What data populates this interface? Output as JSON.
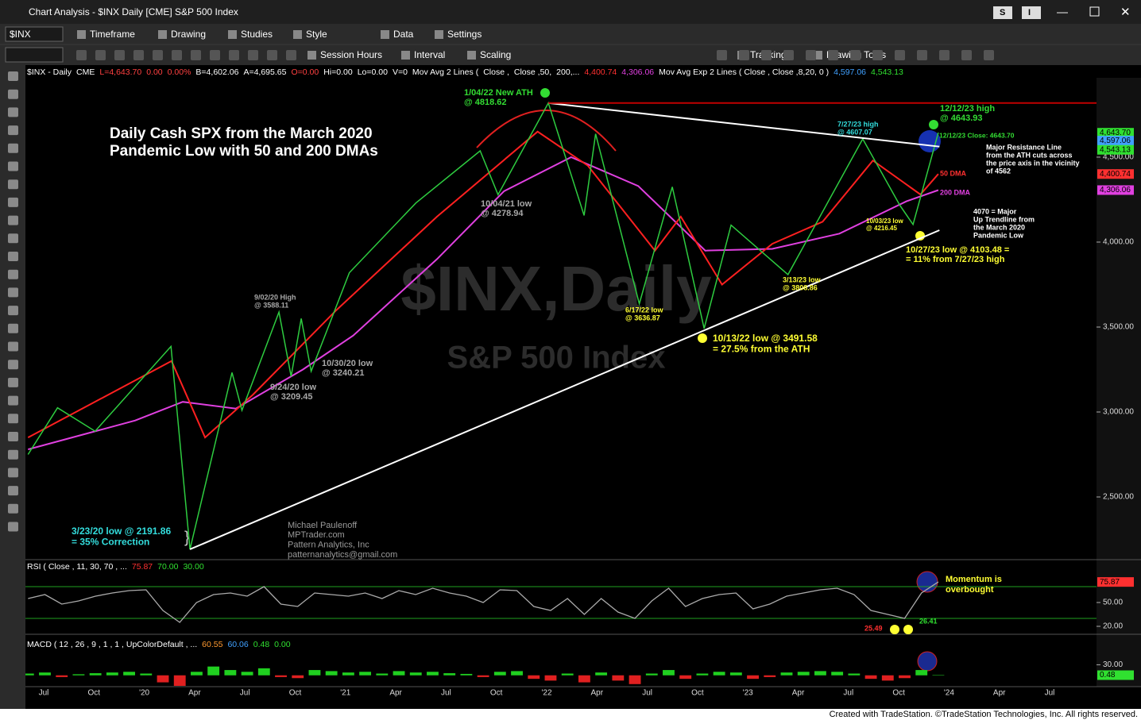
{
  "window": {
    "title": "Chart Analysis - $INX Daily [CME] S&P 500 Index",
    "buttons": [
      "S",
      "I"
    ]
  },
  "toolbar1": {
    "symbol": "$INX",
    "items": [
      "Timeframe",
      "Drawing",
      "Studies",
      "Style",
      "Data",
      "Settings"
    ]
  },
  "toolbar2": {
    "items": [
      "Session Hours",
      "Interval",
      "Scaling",
      "Tracking",
      "Drawing Tools"
    ]
  },
  "status": {
    "segments": [
      {
        "text": "$INX - Daily",
        "color": "#ffffff"
      },
      {
        "text": "CME",
        "color": "#ffffff"
      },
      {
        "text": "L=4,643.70",
        "color": "#ff4040"
      },
      {
        "text": "0.00",
        "color": "#ff4040"
      },
      {
        "text": "0.00%",
        "color": "#ff4040"
      },
      {
        "text": "B=4,602.06",
        "color": "#ffffff"
      },
      {
        "text": "A=4,695.65",
        "color": "#ffffff"
      },
      {
        "text": "O=0.00",
        "color": "#ff4040"
      },
      {
        "text": "Hi=0.00",
        "color": "#ffffff"
      },
      {
        "text": "Lo=0.00",
        "color": "#ffffff"
      },
      {
        "text": "V=0",
        "color": "#ffffff"
      },
      {
        "text": "Mov Avg 2 Lines (",
        "color": "#ffffff"
      },
      {
        "text": "Close ,",
        "color": "#ffffff"
      },
      {
        "text": "Close ,50,",
        "color": "#ffffff"
      },
      {
        "text": "200,...",
        "color": "#ffffff"
      },
      {
        "text": "4,400.74",
        "color": "#ff3030"
      },
      {
        "text": "4,306.06",
        "color": "#e040e0"
      },
      {
        "text": "Mov Avg Exp 2 Lines ( Close , Close ,8,20, 0 )",
        "color": "#ffffff"
      },
      {
        "text": "4,597.06",
        "color": "#40a0ff"
      },
      {
        "text": "4,543.13",
        "color": "#30e030"
      }
    ]
  },
  "chart": {
    "watermark": {
      "symbol": "$INX,Daily",
      "name": "S&P 500 Index"
    },
    "title": [
      "Daily Cash SPX from the March 2020",
      "Pandemic Low with 50 and 200 DMAs"
    ],
    "ylim": [
      2131,
      4967
    ],
    "yticks": [
      {
        "value": 2500,
        "label": "2,500.00"
      },
      {
        "value": 3000,
        "label": "3,000.00"
      },
      {
        "value": 3500,
        "label": "3,500.00"
      },
      {
        "value": 4000,
        "label": "4,000.00"
      },
      {
        "value": 4500,
        "label": "4,500.00"
      }
    ],
    "tags": [
      {
        "value": 4643.7,
        "label": "4,643.70",
        "color": "#30e030"
      },
      {
        "value": 4597.06,
        "label": "4,597.06",
        "color": "#40a0ff"
      },
      {
        "value": 4543.13,
        "label": "4,543.13",
        "color": "#30e030"
      },
      {
        "value": 4400.74,
        "label": "4,400.74",
        "color": "#ff3030"
      },
      {
        "value": 4306.06,
        "label": "4,306.06",
        "color": "#e040e0"
      }
    ],
    "time_axis": [
      "Jul",
      "Oct",
      "'20",
      "Apr",
      "Jul",
      "Oct",
      "'21",
      "Apr",
      "Jul",
      "Oct",
      "'22",
      "Apr",
      "Jul",
      "Oct",
      "'23",
      "Apr",
      "Jul",
      "Oct",
      "'24",
      "Apr",
      "Jul"
    ],
    "price": {
      "color": "#2ecc40",
      "dates": [
        "2019-06-03",
        "2019-07-26",
        "2019-10-03",
        "2020-02-19",
        "2020-03-23",
        "2020-06-08",
        "2020-06-26",
        "2020-09-02",
        "2020-09-24",
        "2020-10-12",
        "2020-10-30",
        "2021-01-08",
        "2021-05-07",
        "2021-09-02",
        "2021-10-04",
        "2022-01-04",
        "2022-03-08",
        "2022-03-29",
        "2022-06-17",
        "2022-08-16",
        "2022-10-13",
        "2022-12-01",
        "2023-03-13",
        "2023-07-27",
        "2023-10-03",
        "2023-10-27",
        "2023-12-12"
      ],
      "values": [
        2750,
        3025,
        2887,
        3386,
        2191.86,
        3232,
        3010,
        3588.11,
        3209.45,
        3550,
        3240.21,
        3820,
        4230,
        4537,
        4278.94,
        4818.62,
        4157,
        4637,
        3636.87,
        4325,
        3491.58,
        4100,
        3808.86,
        4607.07,
        4216.45,
        4103.48,
        4643.93
      ]
    },
    "ma50": {
      "color": "#ff2020",
      "dates": [
        "2019-06-03",
        "2020-02-20",
        "2020-04-20",
        "2020-07-15",
        "2020-12-15",
        "2021-06-15",
        "2021-12-15",
        "2022-03-15",
        "2022-07-15",
        "2022-09-01",
        "2022-11-15",
        "2023-02-15",
        "2023-05-15",
        "2023-08-15",
        "2023-11-10",
        "2023-12-12"
      ],
      "values": [
        2850,
        3300,
        2850,
        3100,
        3600,
        4150,
        4650,
        4450,
        3950,
        4150,
        3750,
        3990,
        4120,
        4480,
        4280,
        4400.74
      ]
    },
    "ma200": {
      "color": "#e040e0",
      "dates": [
        "2019-06-03",
        "2019-12-15",
        "2020-03-10",
        "2020-06-15",
        "2020-10-15",
        "2021-01-15",
        "2021-06-15",
        "2021-10-15",
        "2022-02-15",
        "2022-06-15",
        "2022-10-15",
        "2023-02-15",
        "2023-06-15",
        "2023-10-15",
        "2023-12-12"
      ],
      "values": [
        2780,
        2950,
        3060,
        3020,
        3250,
        3450,
        3900,
        4300,
        4500,
        4330,
        3950,
        3960,
        4050,
        4240,
        4306.06
      ]
    },
    "trendlines": [
      {
        "color": "#ffffff",
        "from": {
          "date": "2022-01-04",
          "value": 4818.62
        },
        "to": {
          "date": "2023-12-14",
          "value": 4562
        }
      },
      {
        "color": "#ffffff",
        "from": {
          "date": "2020-03-23",
          "value": 2191.86
        },
        "to": {
          "date": "2023-12-14",
          "value": 4070
        }
      },
      {
        "color": "#c00000",
        "from": {
          "date": "2022-01-04",
          "value": 4818.62
        },
        "to": {
          "date": "2024-09-30",
          "value": 4818.62
        }
      }
    ],
    "annotations": [
      {
        "lines": [
          "1/04/22 New ATH",
          "@ 4818.62"
        ],
        "color": "#33dd33"
      },
      {
        "lines": [
          "10/04/21 low",
          "@ 4278.94"
        ],
        "color": "#a8a8a8"
      },
      {
        "lines": [
          "9/02/20 High",
          "@ 3588.11"
        ],
        "color": "#a8a8a8"
      },
      {
        "lines": [
          "10/30/20 low",
          "@ 3240.21"
        ],
        "color": "#a8a8a8"
      },
      {
        "lines": [
          "9/24/20 low",
          "@ 3209.45"
        ],
        "color": "#a8a8a8"
      },
      {
        "lines": [
          "6/17/22 low",
          "@ 3636.87"
        ],
        "color": "#ffff33"
      },
      {
        "lines": [
          "10/13/22 low @ 3491.58",
          "= 27.5% from the ATH"
        ],
        "color": "#ffff33"
      },
      {
        "lines": [
          "3/13/23 low",
          "@ 3808.86"
        ],
        "color": "#ffff33"
      },
      {
        "lines": [
          "7/27/23 high",
          "@ 4607.07"
        ],
        "color": "#33dddd"
      },
      {
        "lines": [
          "10/03/23 low",
          "@ 4216.45"
        ],
        "color": "#ffff33"
      },
      {
        "lines": [
          "10/27/23 low @ 4103.48 =",
          "= 11% from 7/27/23 high"
        ],
        "color": "#ffff33"
      },
      {
        "lines": [
          "12/12/23 high",
          "@ 4643.93"
        ],
        "color": "#33dd33"
      },
      {
        "lines": [
          "12/12/23 Close: 4643.70"
        ],
        "color": "#33dd33"
      },
      {
        "lines": [
          "Major Resistance Line",
          "from the ATH cuts across",
          "the price axis in the vicinity",
          "of 4562"
        ],
        "color": "#ffffff"
      },
      {
        "lines": [
          "50 DMA"
        ],
        "color": "#ff3030"
      },
      {
        "lines": [
          "200 DMA"
        ],
        "color": "#e040e0"
      },
      {
        "lines": [
          "4070 = Major",
          "Up Trendline from",
          "the March 2020",
          "Pandemic Low"
        ],
        "color": "#ffffff"
      },
      {
        "lines": [
          "3/23/20 low @ 2191.86",
          "= 35% Correction"
        ],
        "color": "#33dddd"
      },
      {
        "lines": [
          "Michael Paulenoff",
          "MPTrader.com",
          "Pattern Analytics, Inc",
          "patternanalytics@gmail.com"
        ],
        "color": "#9a9a9a"
      }
    ]
  },
  "rsi": {
    "label": [
      {
        "text": "RSI ( Close , 11, 30, 70 , ...",
        "color": "#ffffff"
      },
      {
        "text": "75.87",
        "color": "#ff3030"
      },
      {
        "text": "70.00",
        "color": "#30e030"
      },
      {
        "text": "30.00",
        "color": "#30e030"
      }
    ],
    "ylim": [
      14,
      93
    ],
    "levels": [
      70,
      30
    ],
    "yticks": [
      {
        "value": 50,
        "label": "50.00"
      },
      {
        "value": 20,
        "label": "20.00"
      }
    ],
    "tag": {
      "value": 75.87,
      "label": "75.87"
    },
    "values": [
      55,
      60,
      48,
      52,
      58,
      62,
      65,
      66,
      40,
      25,
      50,
      60,
      62,
      58,
      70,
      48,
      45,
      62,
      60,
      58,
      62,
      55,
      65,
      60,
      68,
      62,
      58,
      50,
      66,
      65,
      45,
      40,
      55,
      35,
      55,
      38,
      30,
      52,
      68,
      45,
      55,
      60,
      62,
      42,
      48,
      58,
      62,
      66,
      68,
      60,
      40,
      35,
      30,
      62,
      75.87
    ],
    "notes": [
      {
        "lines": [
          "Momentum is",
          "overbought"
        ],
        "color": "#ffff33"
      },
      {
        "lines": [
          "25.49"
        ],
        "color": "#ff3030"
      },
      {
        "lines": [
          "26.41"
        ],
        "color": "#30e030"
      }
    ]
  },
  "macd": {
    "label": [
      {
        "text": "MACD ( 12 , 26 , 9 , 1 , 1 , UpColorDefault , ...",
        "color": "#ffffff"
      },
      {
        "text": "60.55",
        "color": "#ff9a30"
      },
      {
        "text": "60.06",
        "color": "#40a0ff"
      },
      {
        "text": "0.48",
        "color": "#30e030"
      },
      {
        "text": "0.00",
        "color": "#30e030"
      }
    ],
    "ylim": [
      -30,
      110
    ],
    "yticks": [
      {
        "value": 30,
        "label": "30.00"
      }
    ],
    "tag": {
      "value": 0.48,
      "label": "0.48"
    },
    "hist": [
      5,
      8,
      -5,
      3,
      6,
      8,
      10,
      5,
      -20,
      -60,
      10,
      25,
      15,
      10,
      20,
      -5,
      -8,
      15,
      12,
      8,
      10,
      5,
      12,
      8,
      10,
      6,
      4,
      -5,
      10,
      12,
      -10,
      -15,
      5,
      -20,
      8,
      -15,
      -25,
      5,
      15,
      -10,
      5,
      10,
      8,
      -10,
      -5,
      8,
      10,
      12,
      10,
      5,
      -10,
      -15,
      -8,
      15,
      0.48
    ]
  },
  "footer": "Created with TradeStation. ©TradeStation Technologies, Inc. All rights reserved."
}
